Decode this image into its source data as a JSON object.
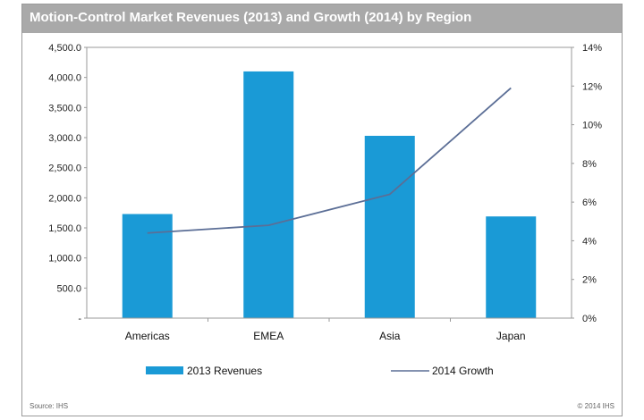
{
  "chart_data": {
    "type": "bar",
    "title": "Motion-Control  Market Revenues (2013) and Growth (2014) by  Region",
    "categories": [
      "Americas",
      "EMEA",
      "Asia",
      "Japan"
    ],
    "series": [
      {
        "name": "2013 Revenues",
        "type": "bar",
        "axis": "left",
        "color": "#1a9ad6",
        "values": [
          1730,
          4100,
          3030,
          1690
        ]
      },
      {
        "name": "2014 Growth",
        "type": "line",
        "axis": "right",
        "color": "#5b6e96",
        "values": [
          4.4,
          4.8,
          6.4,
          11.9
        ]
      }
    ],
    "y_left": {
      "ylim": [
        0,
        4500
      ],
      "ticks": [
        "-",
        "500.0",
        "1,000.0",
        "1,500.0",
        "2,000.0",
        "2,500.0",
        "3,000.0",
        "3,500.0",
        "4,000.0",
        "4,500.0"
      ]
    },
    "y_right": {
      "ylim": [
        0,
        14
      ],
      "ticks": [
        "0%",
        "2%",
        "4%",
        "6%",
        "8%",
        "10%",
        "12%",
        "14%"
      ]
    },
    "grid": false,
    "legend": "bottom",
    "source": "Source: IHS",
    "copyright": "© 2014 IHS"
  }
}
